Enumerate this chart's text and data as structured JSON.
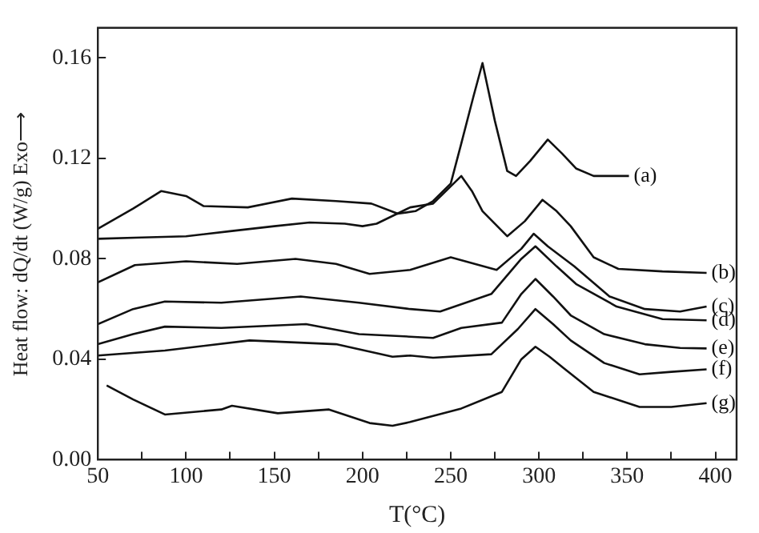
{
  "chart_data": {
    "type": "line",
    "xlabel": "T(°C)",
    "ylabel": "Heat flow: dQ/dt (W/g) Exo⟶",
    "xlim": [
      50,
      412
    ],
    "ylim": [
      0,
      0.172
    ],
    "xticks": [
      50,
      {
        "value": 75,
        "label": null
      },
      100,
      {
        "value": 125,
        "label": null
      },
      150,
      {
        "value": 175,
        "label": null
      },
      200,
      {
        "value": 225,
        "label": null
      },
      250,
      {
        "value": 275,
        "label": null
      },
      300,
      {
        "value": 325,
        "label": null
      },
      350,
      {
        "value": 375,
        "label": null
      },
      400
    ],
    "yticks": [
      {
        "value": 0,
        "label": "0.00"
      },
      {
        "value": 0.04,
        "label": "0.04"
      },
      {
        "value": 0.08,
        "label": "0.08"
      },
      {
        "value": 0.12,
        "label": "0.12"
      },
      {
        "value": 0.16,
        "label": "0.16"
      }
    ],
    "grid": false,
    "legend": false,
    "marker": "none",
    "line_style": "solid",
    "series": [
      {
        "name": "(a)",
        "color": "#111111",
        "x": [
          50,
          70,
          86,
          100,
          110,
          135,
          160,
          185,
          205,
          220,
          230,
          240,
          250,
          256,
          263,
          268,
          275,
          282,
          287,
          295,
          305,
          313,
          321,
          331,
          340,
          351
        ],
        "values": [
          0.092,
          0.1,
          0.107,
          0.105,
          0.101,
          0.1005,
          0.104,
          0.103,
          0.102,
          0.098,
          0.099,
          0.103,
          0.11,
          0.126,
          0.145,
          0.158,
          0.135,
          0.115,
          0.113,
          0.119,
          0.1275,
          0.122,
          0.116,
          0.113,
          0.113,
          0.113
        ]
      },
      {
        "name": "(b)",
        "color": "#111111",
        "x": [
          50,
          75,
          100,
          125,
          150,
          170,
          190,
          200,
          208,
          227,
          240,
          256,
          262,
          268,
          282,
          292,
          302,
          310,
          318,
          331,
          345,
          370,
          395
        ],
        "values": [
          0.088,
          0.0885,
          0.089,
          0.091,
          0.093,
          0.0945,
          0.094,
          0.093,
          0.094,
          0.1005,
          0.102,
          0.113,
          0.107,
          0.099,
          0.089,
          0.095,
          0.1035,
          0.099,
          0.093,
          0.0806,
          0.076,
          0.075,
          0.0744
        ]
      },
      {
        "name": "(c)",
        "color": "#111111",
        "x": [
          50,
          71,
          100,
          129,
          162,
          185,
          204,
          227,
          250,
          276,
          290,
          297,
          305,
          320,
          340,
          360,
          380,
          395
        ],
        "values": [
          0.0706,
          0.0775,
          0.079,
          0.078,
          0.08,
          0.078,
          0.074,
          0.0756,
          0.0806,
          0.0756,
          0.084,
          0.09,
          0.085,
          0.077,
          0.065,
          0.06,
          0.059,
          0.061
        ]
      },
      {
        "name": "(d)",
        "color": "#111111",
        "x": [
          50,
          70,
          88,
          120,
          165,
          198,
          227,
          244,
          273,
          290,
          298,
          310,
          321,
          344,
          370,
          395
        ],
        "values": [
          0.054,
          0.06,
          0.063,
          0.0625,
          0.065,
          0.0625,
          0.06,
          0.059,
          0.066,
          0.08,
          0.085,
          0.077,
          0.07,
          0.061,
          0.056,
          0.0555
        ]
      },
      {
        "name": "(e)",
        "color": "#111111",
        "x": [
          50,
          70,
          88,
          120,
          168,
          198,
          227,
          240,
          256,
          279,
          290,
          298,
          308,
          318,
          337,
          360,
          380,
          395
        ],
        "values": [
          0.046,
          0.05,
          0.053,
          0.0525,
          0.054,
          0.05,
          0.049,
          0.0485,
          0.0525,
          0.0546,
          0.066,
          0.072,
          0.065,
          0.0575,
          0.05,
          0.046,
          0.0445,
          0.0443
        ]
      },
      {
        "name": "(f)",
        "color": "#111111",
        "x": [
          50,
          88,
          136,
          185,
          217,
          227,
          240,
          273,
          288,
          298,
          308,
          318,
          337,
          357,
          375,
          395
        ],
        "values": [
          0.0415,
          0.0435,
          0.0475,
          0.046,
          0.041,
          0.0415,
          0.0406,
          0.042,
          0.052,
          0.06,
          0.054,
          0.0475,
          0.0385,
          0.034,
          0.035,
          0.036
        ]
      },
      {
        "name": "(g)",
        "color": "#111111",
        "x": [
          55,
          70,
          88,
          120,
          126,
          152,
          181,
          204,
          217,
          227,
          256,
          279,
          290,
          298,
          306,
          314,
          331,
          357,
          375,
          395
        ],
        "values": [
          0.0296,
          0.024,
          0.018,
          0.02,
          0.0215,
          0.0185,
          0.02,
          0.0146,
          0.0135,
          0.015,
          0.0204,
          0.027,
          0.04,
          0.045,
          0.041,
          0.0365,
          0.027,
          0.021,
          0.021,
          0.0225
        ]
      }
    ]
  }
}
